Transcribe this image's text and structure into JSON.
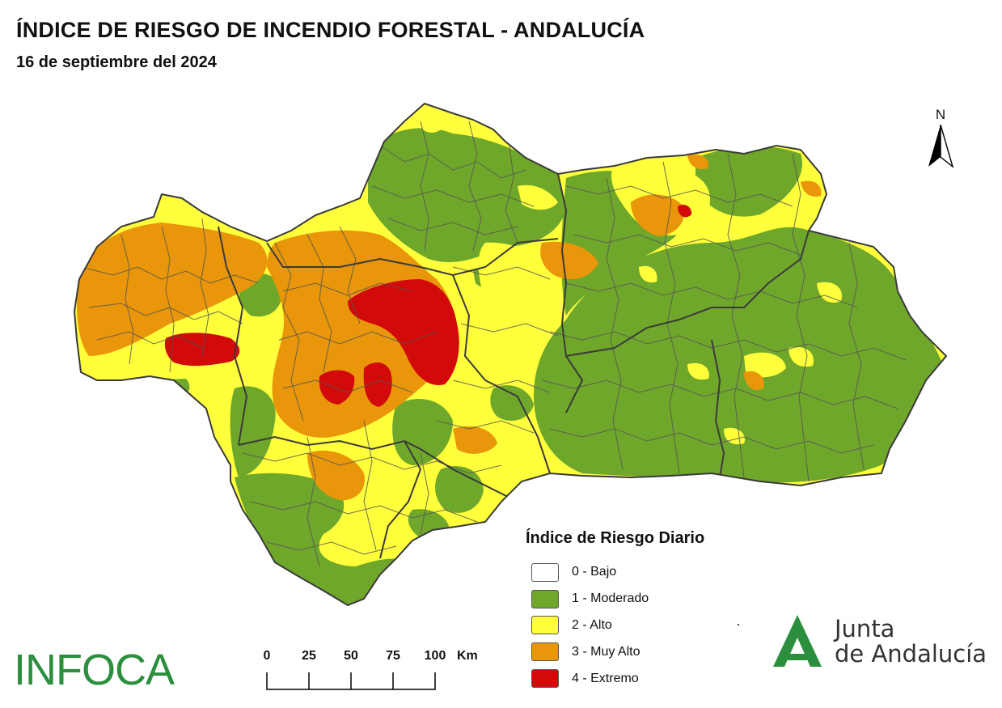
{
  "title": "ÍNDICE DE RIESGO DE INCENDIO FORESTAL - ANDALUCÍA",
  "subtitle": "16 de septiembre del 2024",
  "north_arrow": {
    "label": "N"
  },
  "legend": {
    "title": "Índice de Riesgo Diario",
    "items": [
      {
        "label": "0 - Bajo",
        "color": "#ffffff"
      },
      {
        "label": "1 - Moderado",
        "color": "#6fa72b"
      },
      {
        "label": "2 - Alto",
        "color": "#ffff3c"
      },
      {
        "label": "3 - Muy Alto",
        "color": "#e9960a"
      },
      {
        "label": "4 - Extremo",
        "color": "#d20a0a"
      }
    ]
  },
  "scale_bar": {
    "ticks": [
      "0",
      "25",
      "50",
      "75",
      "100"
    ],
    "unit": "Km"
  },
  "logos": {
    "infoca": "INFOCA",
    "junta_line1": "Junta",
    "junta_line2": "de Andalucía",
    "junta_color": "#2b8f3e"
  },
  "map_colors": {
    "boundary": "#555555",
    "province_boundary": "#3a3a3a"
  }
}
